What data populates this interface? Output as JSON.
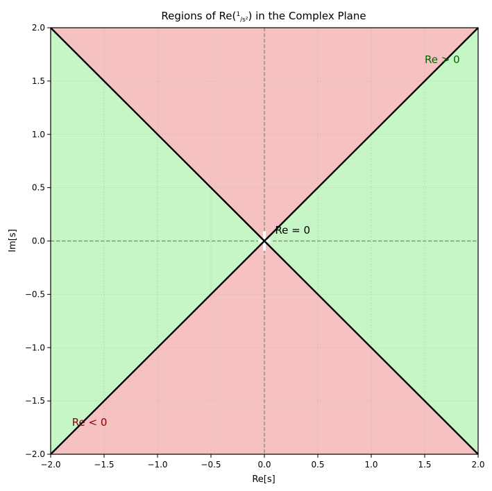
{
  "chart_data": {
    "type": "area",
    "title": {
      "prefix": "Regions of Re",
      "frac_num": "1",
      "frac_den": "s²",
      "suffix": " in the Complex Plane"
    },
    "xlabel": "Re[s]",
    "ylabel": "Im[s]",
    "xlim": [
      -2.0,
      2.0
    ],
    "ylim": [
      -2.0,
      2.0
    ],
    "xticks": [
      -2.0,
      -1.5,
      -1.0,
      -0.5,
      0.0,
      0.5,
      1.0,
      1.5,
      2.0
    ],
    "yticks": [
      -2.0,
      -1.5,
      -1.0,
      -0.5,
      0.0,
      0.5,
      1.0,
      1.5,
      2.0
    ],
    "xtick_labels": [
      "−2.0",
      "−1.5",
      "−1.0",
      "−0.5",
      "0.0",
      "0.5",
      "1.0",
      "1.5",
      "2.0"
    ],
    "ytick_labels": [
      "−2.0",
      "−1.5",
      "−1.0",
      "−0.5",
      "0.0",
      "0.5",
      "1.0",
      "1.5",
      "2.0"
    ],
    "grid": true,
    "regions": [
      {
        "name": "positive",
        "condition": "|Re s| > |Im s|",
        "color": "#c6f5c6"
      },
      {
        "name": "negative",
        "condition": "|Im s| > |Re s|",
        "color": "#f6c1c1"
      }
    ],
    "boundary_lines": [
      {
        "name": "y = x",
        "points": [
          [
            -2.0,
            -2.0
          ],
          [
            2.0,
            2.0
          ]
        ],
        "color": "#000000"
      },
      {
        "name": "y = -x",
        "points": [
          [
            -2.0,
            2.0
          ],
          [
            2.0,
            -2.0
          ]
        ],
        "color": "#000000"
      }
    ],
    "reference_lines": [
      {
        "name": "real-axis",
        "orientation": "horizontal",
        "value": 0.0,
        "color": "#808080"
      },
      {
        "name": "imag-axis",
        "orientation": "vertical",
        "value": 0.0,
        "color": "#808080"
      }
    ],
    "singularity_point": {
      "x": 0.0,
      "y": 0.0
    },
    "annotations": [
      {
        "text": "Re > 0",
        "x": 1.5,
        "y": 1.7,
        "color": "#006400"
      },
      {
        "text": "Re < 0",
        "x": -1.8,
        "y": -1.7,
        "color": "#8b0000"
      },
      {
        "text": "Re = 0",
        "x": 0.1,
        "y": 0.1,
        "color": "#000000"
      }
    ]
  }
}
